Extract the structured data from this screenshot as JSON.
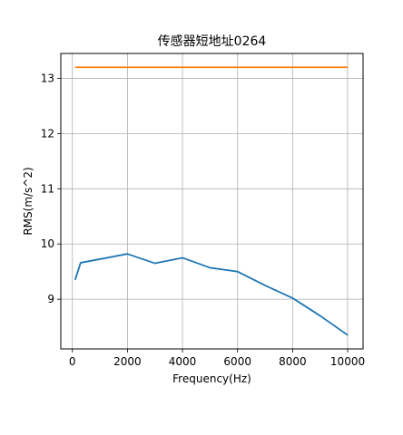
{
  "chart_data": {
    "type": "line",
    "title": "传感器短地址0264",
    "xlabel": "Frequency(Hz)",
    "ylabel": "RMS(m/s^2)",
    "xlim": [
      -420,
      10560
    ],
    "ylim": [
      8.1,
      13.45
    ],
    "xticks": [
      0,
      2000,
      4000,
      6000,
      8000,
      10000
    ],
    "xtick_labels": [
      "0",
      "2000",
      "4000",
      "6000",
      "8000",
      "10000"
    ],
    "yticks": [
      9,
      10,
      11,
      12,
      13
    ],
    "ytick_labels": [
      "9",
      "10",
      "11",
      "12",
      "13"
    ],
    "grid": true,
    "legend": "none",
    "series": [
      {
        "color": "#1f77b4",
        "x": [
          100,
          300,
          2000,
          3000,
          4000,
          5000,
          6000,
          7000,
          8000,
          9000,
          10000
        ],
        "y": [
          9.35,
          9.66,
          9.82,
          9.65,
          9.75,
          9.57,
          9.5,
          9.25,
          9.02,
          8.7,
          8.35
        ]
      },
      {
        "color": "#ff7f0e",
        "x": [
          100,
          300,
          2000,
          3000,
          4000,
          5000,
          6000,
          7000,
          8000,
          9000,
          10000
        ],
        "y": [
          13.2,
          13.2,
          13.2,
          13.2,
          13.2,
          13.2,
          13.2,
          13.2,
          13.2,
          13.2,
          13.2
        ]
      }
    ]
  }
}
